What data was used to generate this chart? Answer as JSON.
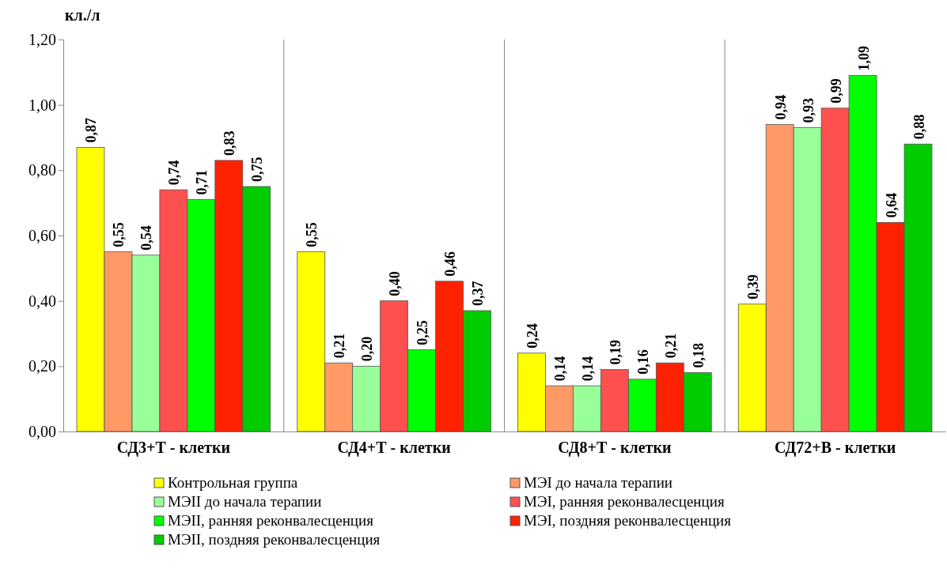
{
  "chart_data": {
    "type": "bar",
    "ylabel": "кл./л",
    "categories": [
      "СД3+Т - клетки",
      "СД4+Т - клетки",
      "СД8+Т - клетки",
      "СД72+В - клетки"
    ],
    "series": [
      {
        "name": "Контрольная группа",
        "color": "#ffff00",
        "values": [
          0.87,
          0.55,
          0.24,
          0.39
        ],
        "value_labels": [
          "0,87",
          "0,55",
          "0,24",
          "0,39"
        ]
      },
      {
        "name": "МЭI до начала терапии",
        "color": "#ff9966",
        "values": [
          0.55,
          0.21,
          0.14,
          0.94
        ],
        "value_labels": [
          "0,55",
          "0,21",
          "0,14",
          "0,94"
        ]
      },
      {
        "name": "МЭII до начала терапии",
        "color": "#99ff99",
        "values": [
          0.54,
          0.2,
          0.14,
          0.93
        ],
        "value_labels": [
          "0,54",
          "0,20",
          "0,14",
          "0,93"
        ]
      },
      {
        "name": "МЭI, ранняя реконвалесценция",
        "color": "#ff5050",
        "values": [
          0.74,
          0.4,
          0.19,
          0.99
        ],
        "value_labels": [
          "0,74",
          "0,40",
          "0,19",
          "0,99"
        ]
      },
      {
        "name": "МЭII, ранняя реконвалесценция",
        "color": "#00ff00",
        "values": [
          0.71,
          0.25,
          0.16,
          1.09
        ],
        "value_labels": [
          "0,71",
          "0,25",
          "0,16",
          "1,09"
        ]
      },
      {
        "name": "МЭI, поздняя реконвалесценция",
        "color": "#ff2200",
        "values": [
          0.83,
          0.46,
          0.21,
          0.64
        ],
        "value_labels": [
          "0,83",
          "0,46",
          "0,21",
          "0,64"
        ]
      },
      {
        "name": "МЭII, поздняя реконвалесценция",
        "color": "#00cc00",
        "values": [
          0.75,
          0.37,
          0.18,
          0.88
        ],
        "value_labels": [
          "0,75",
          "0,37",
          "0,18",
          "0,88"
        ]
      }
    ],
    "ylim": [
      0,
      1.2
    ],
    "yticks": [
      {
        "value": 0,
        "label": "0,00"
      },
      {
        "value": 0.2,
        "label": "0,20"
      },
      {
        "value": 0.4,
        "label": "0,40"
      },
      {
        "value": 0.6,
        "label": "0,60"
      },
      {
        "value": 0.8,
        "label": "0,80"
      },
      {
        "value": 1,
        "label": "1,00"
      },
      {
        "value": 1.2,
        "label": "1,20"
      }
    ],
    "grid": "x",
    "legend": "bottom"
  }
}
